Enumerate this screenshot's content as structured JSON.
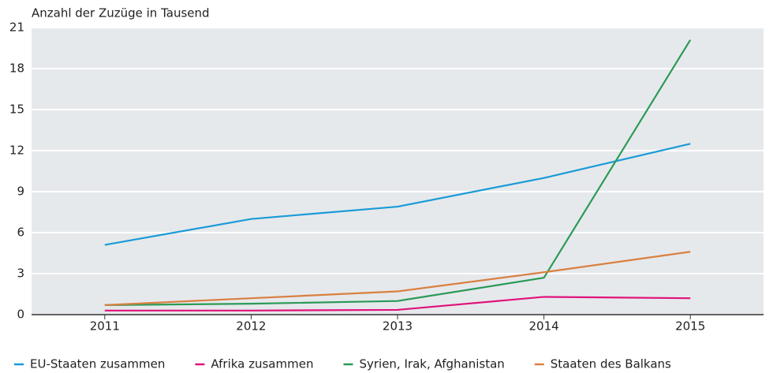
{
  "chart_data": {
    "type": "line",
    "y_axis_label": "Anzahl der Zuzüge in Tausend",
    "categories": [
      "2011",
      "2012",
      "2013",
      "2014",
      "2015"
    ],
    "series": [
      {
        "name": "EU-Staaten zusammen",
        "color": "#1a9bd7",
        "values": [
          5.1,
          7.0,
          7.9,
          10.0,
          12.5
        ]
      },
      {
        "name": "Afrika zusammen",
        "color": "#e0137a",
        "values": [
          0.3,
          0.3,
          0.35,
          1.3,
          1.2
        ]
      },
      {
        "name": "Syrien, Irak, Afghanistan",
        "color": "#2b9a57",
        "values": [
          0.7,
          0.8,
          1.0,
          2.7,
          20.1
        ]
      },
      {
        "name": "Staaten des Balkans",
        "color": "#d98040",
        "values": [
          0.7,
          1.2,
          1.7,
          3.1,
          4.6
        ]
      }
    ],
    "ylim": [
      0,
      21
    ],
    "yticks": [
      0,
      3,
      6,
      9,
      12,
      15,
      18,
      21
    ],
    "grid": true
  }
}
